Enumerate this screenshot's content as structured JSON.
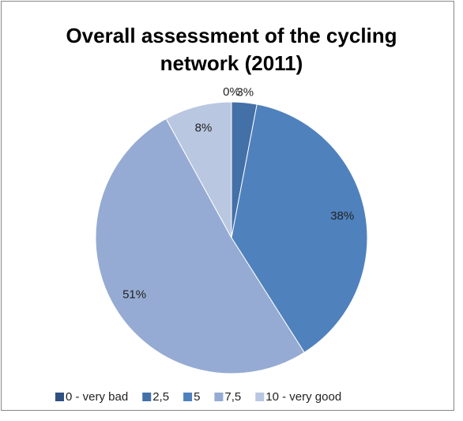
{
  "chart_data": {
    "type": "pie",
    "title": "Overall assessment of the cycling network (2011)",
    "categories": [
      "0 - very bad",
      "2,5",
      "5",
      "7,5",
      "10 - very good"
    ],
    "values": [
      0,
      3,
      38,
      51,
      8
    ],
    "value_labels": [
      "0%",
      "3%",
      "38%",
      "51%",
      "8%"
    ],
    "colors": [
      "#2f5180",
      "#4470a8",
      "#4f81bd",
      "#95abd3",
      "#bac7e1"
    ],
    "legend": "bottom"
  }
}
